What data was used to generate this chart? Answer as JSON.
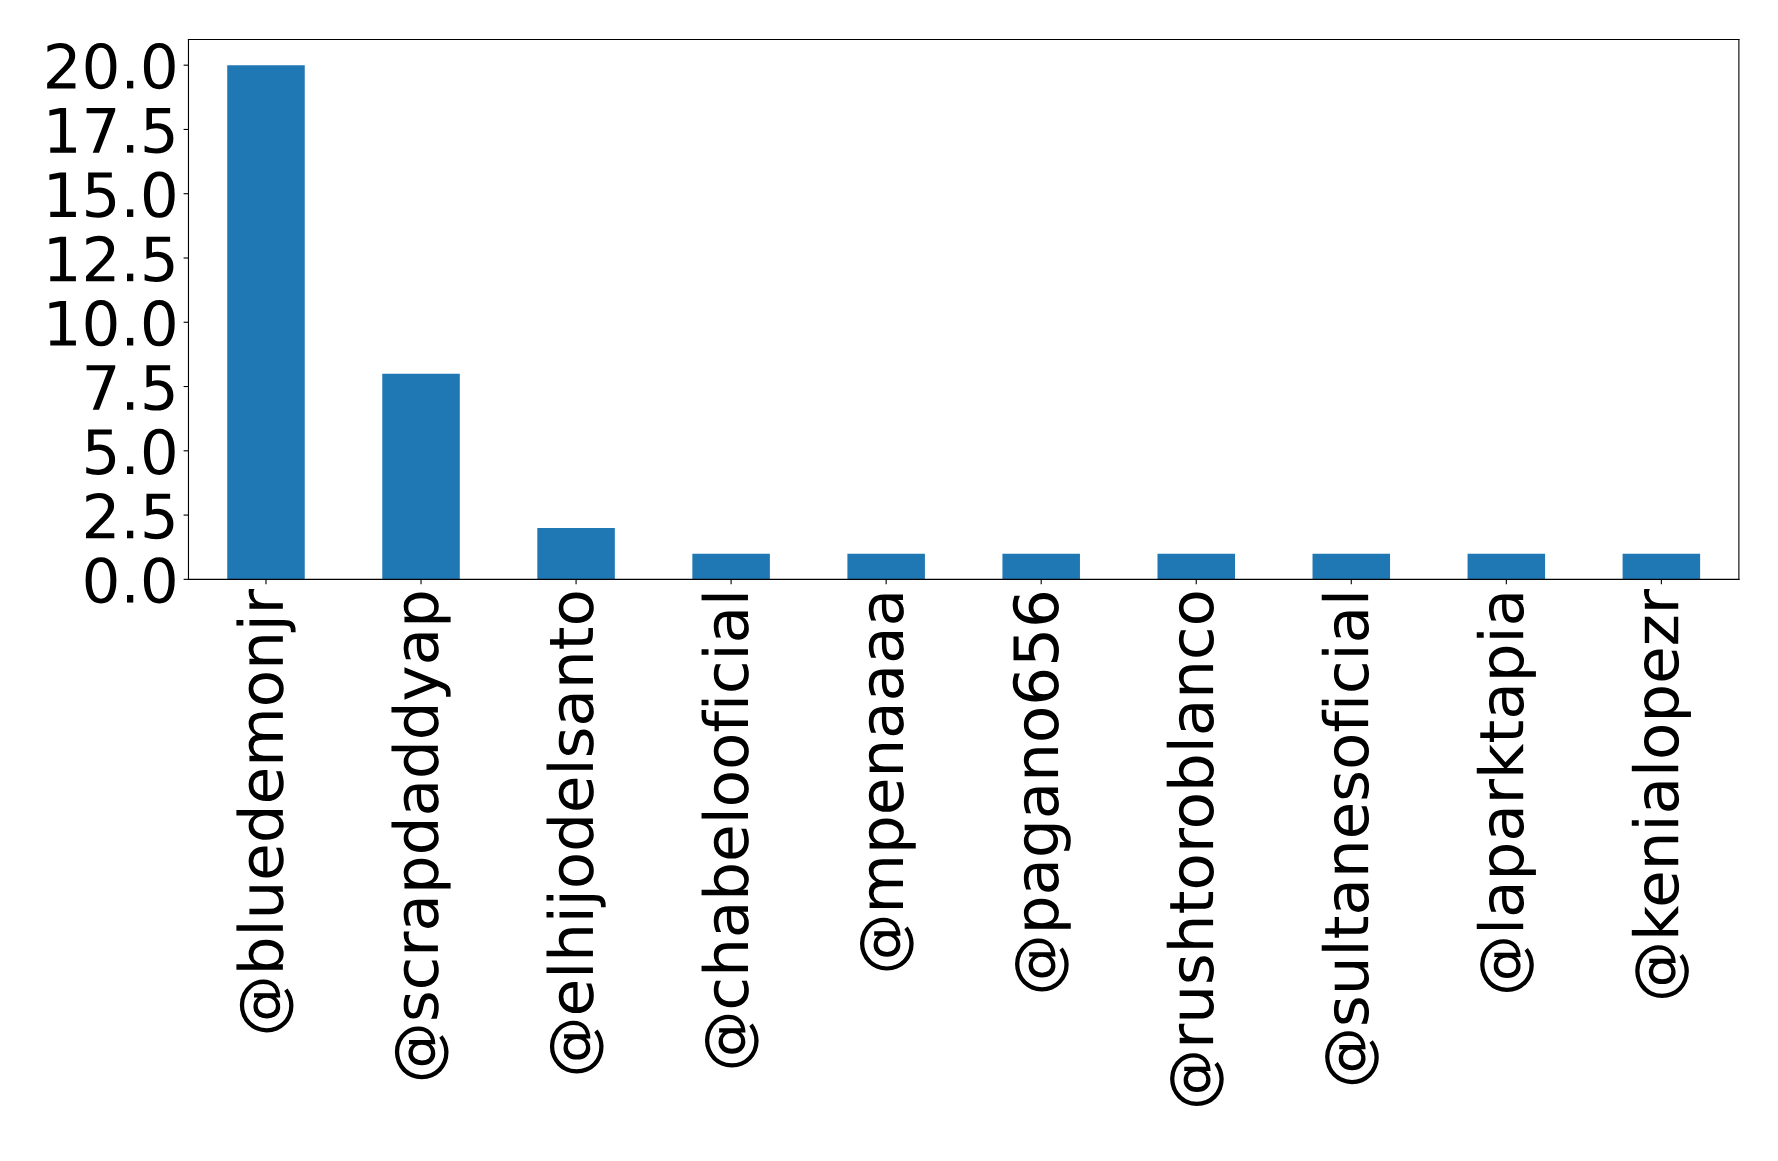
{
  "chart_data": {
    "type": "bar",
    "categories": [
      "@bluedemonjr",
      "@scrapdaddyap",
      "@elhijodelsanto",
      "@chabelooficial",
      "@mpenaaaa",
      "@pagano656",
      "@rushtoroblanco",
      "@sultanesoficial",
      "@laparktapia",
      "@kenialopezr"
    ],
    "values": [
      20,
      8,
      2,
      1,
      1,
      1,
      1,
      1,
      1,
      1
    ],
    "color": "#1f77b4",
    "ylim": [
      0,
      21
    ],
    "yticks": [
      {
        "value": 0,
        "label": "0.0"
      },
      {
        "value": 2.5,
        "label": "2.5"
      },
      {
        "value": 5,
        "label": "5.0"
      },
      {
        "value": 7.5,
        "label": "7.5"
      },
      {
        "value": 10,
        "label": "10.0"
      },
      {
        "value": 12.5,
        "label": "12.5"
      },
      {
        "value": 15,
        "label": "15.0"
      },
      {
        "value": 17.5,
        "label": "17.5"
      },
      {
        "value": 20,
        "label": "20.0"
      }
    ],
    "grid": false
  }
}
